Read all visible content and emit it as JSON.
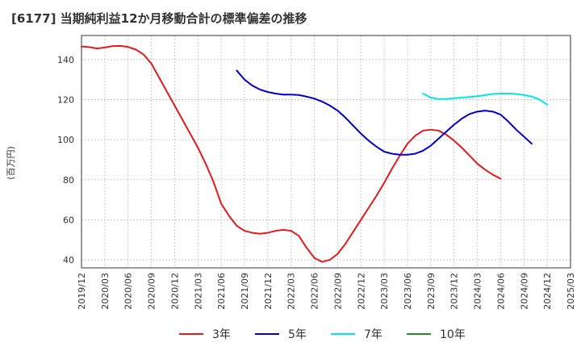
{
  "chart_data": {
    "type": "line",
    "title": "[6177]  当期純利益12か月移動合計の標準偏差の推移",
    "ylabel": "(百万円)",
    "xlabel": "",
    "ylim": [
      36,
      152
    ],
    "yticks": [
      40,
      60,
      80,
      100,
      120,
      140
    ],
    "xticks": [
      "2019/12",
      "2020/03",
      "2020/06",
      "2020/09",
      "2020/12",
      "2021/03",
      "2021/06",
      "2021/09",
      "2021/12",
      "2022/03",
      "2022/06",
      "2022/09",
      "2022/12",
      "2023/03",
      "2023/06",
      "2023/09",
      "2023/12",
      "2024/03",
      "2024/06",
      "2024/09",
      "2024/12",
      "2025/03"
    ],
    "grid": true,
    "legend_position": "bottom",
    "series": [
      {
        "name": "3年",
        "color": "#e31a1c",
        "start": "2019/12",
        "values": [
          146.5,
          146.2,
          145.5,
          146.0,
          146.7,
          146.8,
          146.3,
          145.0,
          142.5,
          138.0,
          131.0,
          124.0,
          117.0,
          110.0,
          103.0,
          96.0,
          88.0,
          79.0,
          68.0,
          62.0,
          57.0,
          54.5,
          53.5,
          53.0,
          53.5,
          54.5,
          55.0,
          54.5,
          52.0,
          46.0,
          41.0,
          39.0,
          40.0,
          43.0,
          48.0,
          54.0,
          60.0,
          66.0,
          72.0,
          78.5,
          85.5,
          92.0,
          98.0,
          102.0,
          104.5,
          105.0,
          104.5,
          102.5,
          99.5,
          96.0,
          92.0,
          88.0,
          85.0,
          82.5,
          80.5
        ]
      },
      {
        "name": "5年",
        "color": "#0000cc",
        "start": "2021/08",
        "values": [
          134.5,
          130.0,
          127.0,
          125.0,
          123.8,
          123.0,
          122.5,
          122.5,
          122.3,
          121.5,
          120.5,
          119.0,
          117.0,
          114.5,
          111.0,
          107.0,
          103.0,
          99.5,
          96.5,
          94.0,
          93.0,
          92.5,
          92.5,
          93.0,
          94.5,
          97.0,
          100.5,
          104.0,
          107.5,
          110.5,
          112.8,
          114.0,
          114.5,
          114.0,
          112.5,
          109.0,
          105.0,
          101.5,
          98.0
        ]
      },
      {
        "name": "7年",
        "color": "#00e5ee",
        "start": "2023/08",
        "values": [
          123.0,
          121.0,
          120.3,
          120.3,
          120.7,
          121.0,
          121.3,
          121.7,
          122.2,
          122.8,
          123.0,
          123.0,
          122.8,
          122.3,
          121.5,
          120.0,
          117.5
        ]
      },
      {
        "name": "10年",
        "color": "#228b22",
        "start": "",
        "values": []
      }
    ]
  }
}
